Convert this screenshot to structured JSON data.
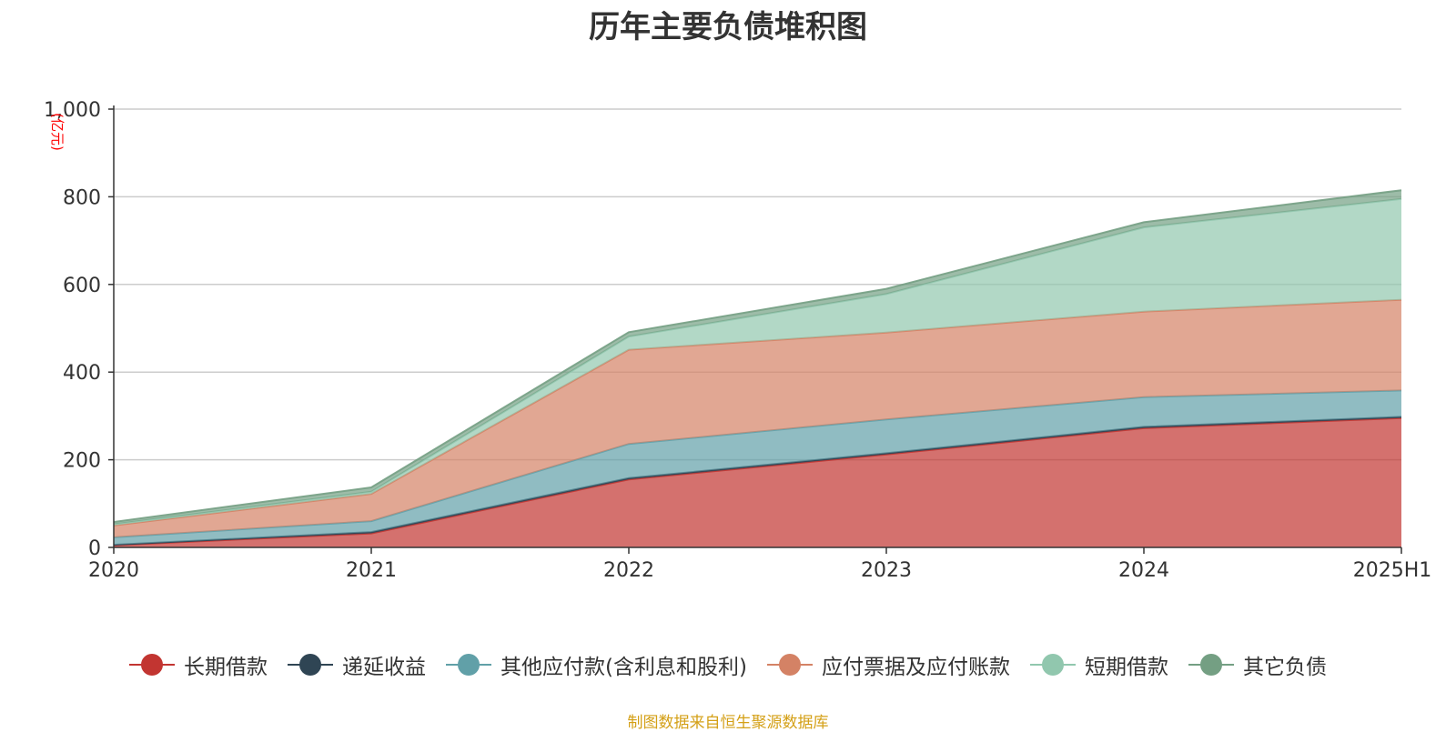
{
  "chart_data": {
    "type": "area",
    "stacked": true,
    "title": "历年主要负债堆积图",
    "unit_label": "(亿元)",
    "categories": [
      "2020",
      "2021",
      "2022",
      "2023",
      "2024",
      "2025H1"
    ],
    "ylim": [
      0,
      1000
    ],
    "yticks": [
      0,
      200,
      400,
      600,
      800,
      "1,000"
    ],
    "grid": true,
    "legend_position": "bottom",
    "series": [
      {
        "name": "长期借款",
        "color": "#c23531",
        "values": [
          5,
          32,
          155,
          212,
          272,
          295
        ]
      },
      {
        "name": "递延收益",
        "color": "#2f4554",
        "values": [
          1,
          3,
          3,
          3,
          3,
          3
        ]
      },
      {
        "name": "其他应付款(含利息和股利)",
        "color": "#61a0a8",
        "values": [
          17,
          25,
          78,
          77,
          68,
          60
        ]
      },
      {
        "name": "应付票据及应付账款",
        "color": "#d48265",
        "values": [
          27,
          62,
          215,
          198,
          195,
          207
        ]
      },
      {
        "name": "短期借款",
        "color": "#91c7ae",
        "values": [
          3,
          5,
          30,
          88,
          192,
          230
        ]
      },
      {
        "name": "其它负债",
        "color": "#749f83",
        "values": [
          5,
          10,
          10,
          12,
          12,
          20
        ]
      }
    ]
  },
  "footer": {
    "source": "制图数据来自恒生聚源数据库"
  }
}
